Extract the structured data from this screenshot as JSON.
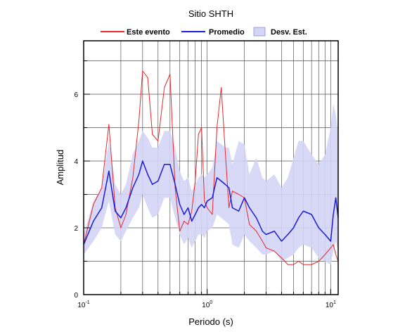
{
  "chart_data": {
    "type": "line",
    "title": "Sitio SHTH",
    "xlabel": "Periodo (s)",
    "ylabel": "Amplitud",
    "x_scale": "log",
    "xlim": [
      0.1,
      11.5
    ],
    "ylim": [
      0,
      7.6
    ],
    "x_ticks": [
      {
        "value": 0.1,
        "base": "10",
        "exp": "-1"
      },
      {
        "value": 1,
        "base": "10",
        "exp": "0"
      },
      {
        "value": 10,
        "base": "10",
        "exp": "1"
      }
    ],
    "y_ticks": [
      0,
      2,
      4,
      6
    ],
    "grid": true,
    "legend_position": "top",
    "legend": [
      {
        "label": "Este evento",
        "kind": "line",
        "color": "#e8262b"
      },
      {
        "label": "Promedio",
        "kind": "line",
        "color": "#1a1adb"
      },
      {
        "label": "Desv. Est.",
        "kind": "band",
        "color": "#d4d4f6"
      }
    ],
    "x": [
      0.1,
      0.12,
      0.14,
      0.16,
      0.18,
      0.2,
      0.22,
      0.25,
      0.28,
      0.3,
      0.33,
      0.36,
      0.4,
      0.45,
      0.5,
      0.55,
      0.6,
      0.65,
      0.7,
      0.75,
      0.8,
      0.85,
      0.9,
      0.95,
      1.0,
      1.1,
      1.2,
      1.3,
      1.4,
      1.5,
      1.6,
      1.8,
      2.0,
      2.2,
      2.5,
      2.8,
      3.0,
      3.5,
      4.0,
      4.5,
      5.0,
      5.5,
      6.0,
      7.0,
      8.0,
      9.0,
      10.0,
      10.5,
      11.0,
      11.5
    ],
    "series": [
      {
        "name": "Este evento",
        "color": "#e8262b",
        "values": [
          1.5,
          2.7,
          3.2,
          5.1,
          2.6,
          2.0,
          2.4,
          3.5,
          5.2,
          6.7,
          6.5,
          4.8,
          4.6,
          6.2,
          6.6,
          3.2,
          1.9,
          2.2,
          2.1,
          2.5,
          3.4,
          4.8,
          5.0,
          2.8,
          2.6,
          2.4,
          5.0,
          6.2,
          4.3,
          2.6,
          3.1,
          3.0,
          2.9,
          2.1,
          1.9,
          1.6,
          1.4,
          1.3,
          1.1,
          0.9,
          0.9,
          1.0,
          0.9,
          0.9,
          1.0,
          1.2,
          1.4,
          1.5,
          1.2,
          1.0
        ]
      },
      {
        "name": "Promedio",
        "color": "#1a1adb",
        "values": [
          1.5,
          2.2,
          2.6,
          3.7,
          2.5,
          2.3,
          2.6,
          3.2,
          3.6,
          4.0,
          3.6,
          3.3,
          3.4,
          3.9,
          3.9,
          3.3,
          2.7,
          2.4,
          2.6,
          2.2,
          2.4,
          2.6,
          2.7,
          2.6,
          2.8,
          2.9,
          3.5,
          3.4,
          3.3,
          3.2,
          2.6,
          2.5,
          2.9,
          2.6,
          2.3,
          1.9,
          1.8,
          1.9,
          1.6,
          1.8,
          2.0,
          2.3,
          2.5,
          2.4,
          2.0,
          1.8,
          1.6,
          2.4,
          2.9,
          2.3
        ]
      }
    ],
    "band": {
      "name": "Desv. Est.",
      "color": "#d4d4f6",
      "upper": [
        1.8,
        2.8,
        3.2,
        4.6,
        3.3,
        3.0,
        3.3,
        4.2,
        4.6,
        4.9,
        4.7,
        4.4,
        4.4,
        4.9,
        4.9,
        4.4,
        3.7,
        3.4,
        3.5,
        3.1,
        3.3,
        3.5,
        3.6,
        3.5,
        3.6,
        3.8,
        4.6,
        4.5,
        4.4,
        4.4,
        3.9,
        4.6,
        4.5,
        3.6,
        4.1,
        3.5,
        3.4,
        3.6,
        3.2,
        3.5,
        4.1,
        4.6,
        4.6,
        4.2,
        3.9,
        4.2,
        5.0,
        5.7,
        5.4,
        4.8
      ],
      "lower": [
        1.2,
        1.6,
        2.0,
        2.8,
        1.8,
        1.6,
        1.9,
        2.3,
        2.6,
        3.0,
        2.6,
        2.3,
        2.4,
        2.9,
        2.9,
        2.3,
        1.8,
        1.5,
        1.7,
        1.4,
        1.6,
        1.8,
        1.8,
        1.7,
        1.9,
        2.0,
        2.4,
        2.3,
        2.2,
        2.1,
        1.5,
        1.4,
        1.8,
        1.6,
        1.4,
        1.2,
        1.2,
        1.3,
        1.0,
        1.1,
        1.2,
        1.4,
        1.5,
        1.4,
        1.1,
        1.0,
        0.9,
        1.3,
        1.6,
        1.3
      ]
    }
  }
}
